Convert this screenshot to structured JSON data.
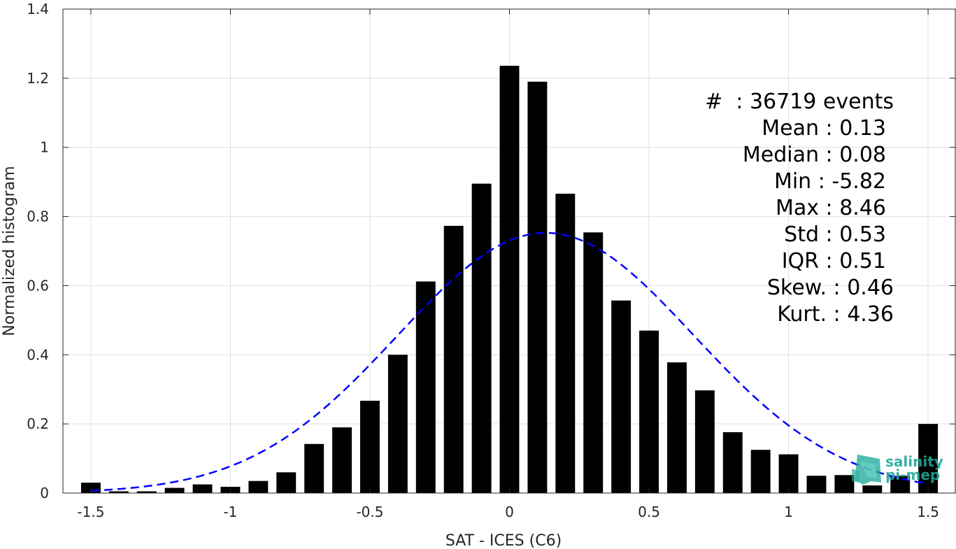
{
  "chart_data": {
    "type": "bar",
    "xlabel": "SAT - ICES (C6)",
    "ylabel": "Normalized histogram",
    "xlim": [
      -1.6,
      1.6
    ],
    "ylim": [
      0,
      1.4
    ],
    "x_ticks": [
      -1.5,
      -1,
      -0.5,
      0,
      0.5,
      1,
      1.5
    ],
    "x_tick_labels": [
      "-1.5",
      "-1",
      "-0.5",
      "0",
      "0.5",
      "1",
      "1.5"
    ],
    "y_ticks": [
      0,
      0.2,
      0.4,
      0.6,
      0.8,
      1,
      1.2,
      1.4
    ],
    "y_tick_labels": [
      "0",
      "0.2",
      "0.4",
      "0.6",
      "0.8",
      "1",
      "1.2",
      "1.4"
    ],
    "grid": true,
    "bar_color": "#000000",
    "bins": [
      -1.5,
      -1.4,
      -1.3,
      -1.2,
      -1.1,
      -1.0,
      -0.9,
      -0.8,
      -0.7,
      -0.6,
      -0.5,
      -0.4,
      -0.3,
      -0.2,
      -0.1,
      0.0,
      0.1,
      0.2,
      0.3,
      0.4,
      0.5,
      0.6,
      0.7,
      0.8,
      0.9,
      1.0,
      1.1,
      1.2,
      1.3,
      1.4,
      1.5
    ],
    "values": [
      0.03,
      0.005,
      0.005,
      0.015,
      0.025,
      0.018,
      0.035,
      0.06,
      0.142,
      0.19,
      0.267,
      0.4,
      0.612,
      0.773,
      0.895,
      1.236,
      1.19,
      0.866,
      0.754,
      0.557,
      0.47,
      0.378,
      0.297,
      0.176,
      0.125,
      0.112,
      0.05,
      0.052,
      0.022,
      0.05,
      0.2
    ],
    "fit": {
      "type": "normal",
      "mean": 0.13,
      "std": 0.53,
      "color": "#0000ff",
      "line_style": "dashed",
      "x_range": [
        -1.5,
        1.5
      ]
    }
  },
  "stats": {
    "events": "#  : 36719 events",
    "mean": "Mean : 0.13",
    "median": "Median : 0.08",
    "min": "Min : -5.82",
    "max": "Max : 8.46",
    "std": "Std : 0.53",
    "iqr": "IQR : 0.51",
    "skew": "Skew. : 0.46",
    "kurt": "Kurt. : 4.36"
  },
  "logo": {
    "line1": "salinity",
    "line2": "pi-mep",
    "color": "#1fa89a"
  }
}
